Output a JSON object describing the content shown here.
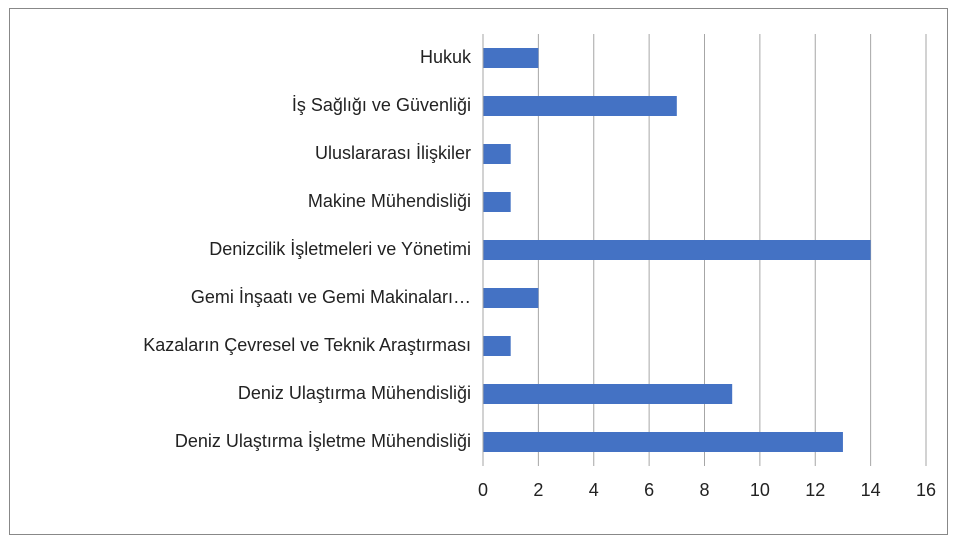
{
  "chart_data": {
    "type": "bar",
    "orientation": "horizontal",
    "categories": [
      "Hukuk",
      "İş Sağlığı ve Güvenliği",
      "Uluslararası İlişkiler",
      "Makine Mühendisliği",
      "Denizcilik İşletmeleri ve Yönetimi",
      "Gemi İnşaatı ve Gemi Makinaları…",
      "Kazaların Çevresel ve Teknik Araştırması",
      "Deniz Ulaştırma Mühendisliği",
      "Deniz Ulaştırma İşletme Mühendisliği"
    ],
    "values": [
      2,
      7,
      1,
      1,
      14,
      2,
      1,
      9,
      13
    ],
    "color": "#4472c4",
    "xlim": [
      0,
      16
    ],
    "xticks": [
      0,
      2,
      4,
      6,
      8,
      10,
      12,
      14,
      16
    ],
    "grid": true
  }
}
